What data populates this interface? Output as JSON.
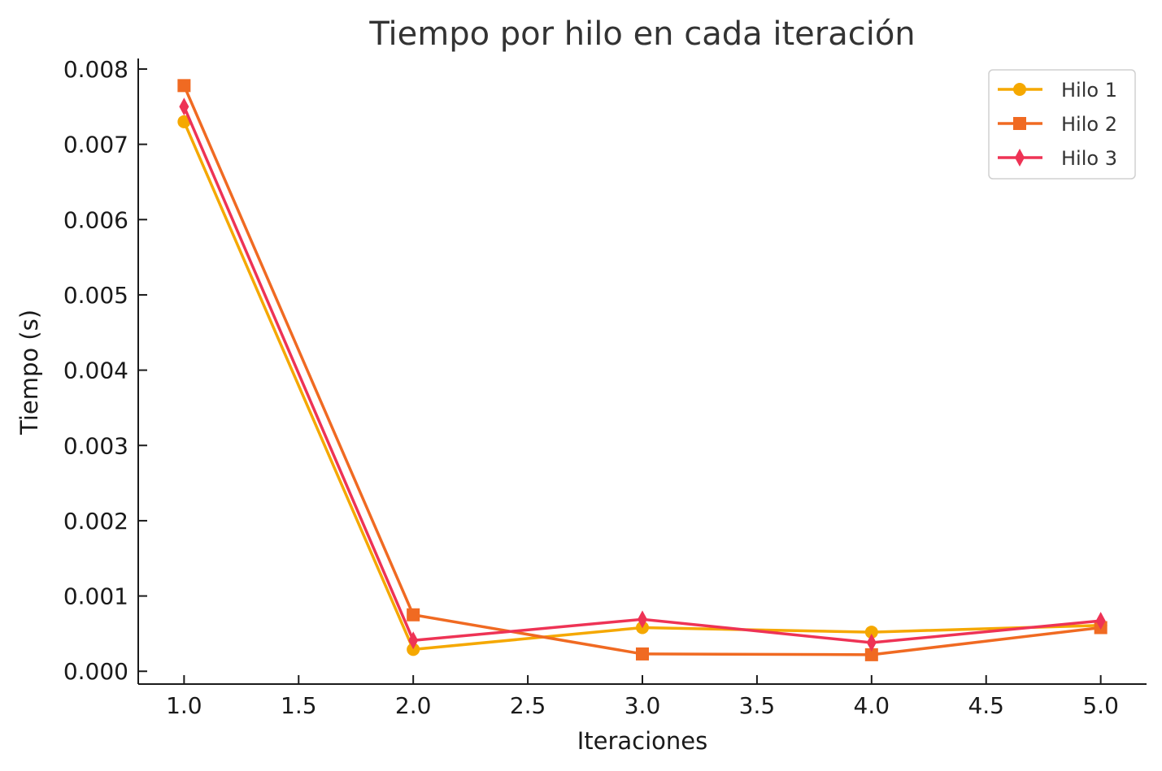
{
  "chart_data": {
    "type": "line",
    "title": "Tiempo por hilo en cada iteración",
    "xlabel": "Iteraciones",
    "ylabel": "Tiempo (s)",
    "xlim": [
      0.8,
      5.2
    ],
    "ylim": [
      -0.00017,
      0.00814
    ],
    "xticks": [
      1.0,
      1.5,
      2.0,
      2.5,
      3.0,
      3.5,
      4.0,
      4.5,
      5.0
    ],
    "xtick_labels": [
      "1.0",
      "1.5",
      "2.0",
      "2.5",
      "3.0",
      "3.5",
      "4.0",
      "4.5",
      "5.0"
    ],
    "yticks": [
      0.0,
      0.001,
      0.002,
      0.003,
      0.004,
      0.005,
      0.006,
      0.007,
      0.008
    ],
    "ytick_labels": [
      "0.000",
      "0.001",
      "0.002",
      "0.003",
      "0.004",
      "0.005",
      "0.006",
      "0.007",
      "0.008"
    ],
    "grid": false,
    "legend_position": "top-right",
    "x": [
      1,
      2,
      3,
      4,
      5
    ],
    "series": [
      {
        "name": "Hilo 1",
        "marker": "circle",
        "color": "#F5A800",
        "values": [
          0.0073,
          0.00029,
          0.00058,
          0.00052,
          0.00061
        ]
      },
      {
        "name": "Hilo 2",
        "marker": "square",
        "color": "#F06A22",
        "values": [
          0.00778,
          0.00075,
          0.00023,
          0.00022,
          0.00058
        ]
      },
      {
        "name": "Hilo 3",
        "marker": "diamond",
        "color": "#EE3355",
        "values": [
          0.0075,
          0.00041,
          0.00069,
          0.00038,
          0.00067
        ]
      }
    ]
  }
}
